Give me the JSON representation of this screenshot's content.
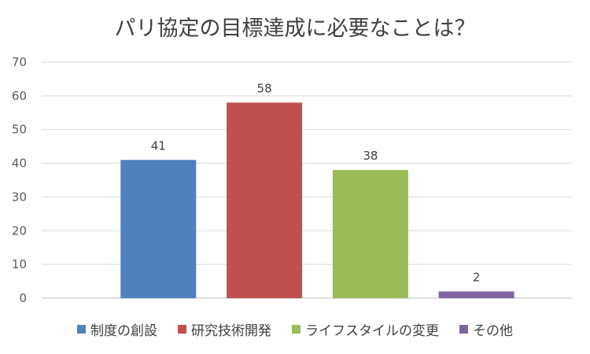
{
  "chart_data": {
    "type": "bar",
    "title": "パリ協定の目標達成に必要なことは？",
    "categories": [
      "制度の創設",
      "研究技術開発",
      "ライフスタイルの変更",
      "その他"
    ],
    "values": [
      41,
      58,
      38,
      2
    ],
    "colors": [
      "#4f81bd",
      "#c0504d",
      "#9bbb59",
      "#8064a2"
    ],
    "ylim": [
      0,
      70
    ],
    "yticks": [
      0,
      10,
      20,
      30,
      40,
      50,
      60,
      70
    ],
    "xlabel": "",
    "ylabel": "",
    "grid": true,
    "legend_position": "bottom",
    "data_labels": true
  }
}
